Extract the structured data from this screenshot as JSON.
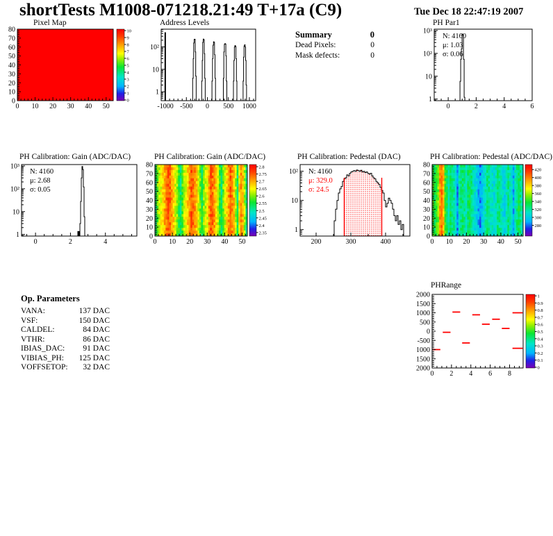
{
  "header": {
    "title": "shortTests M1008-071218.21:49 T+17a (C9)",
    "date": "Tue Dec 18 22:47:19 2007"
  },
  "summary": {
    "heading": "Summary",
    "heading_value": "0",
    "rows": [
      {
        "label": "Dead Pixels:",
        "value": "0"
      },
      {
        "label": "Mask defects:",
        "value": "0"
      }
    ]
  },
  "op_parameters": {
    "heading": "Op. Parameters",
    "rows": [
      {
        "label": "VANA:",
        "value": "137 DAC"
      },
      {
        "label": "VSF:",
        "value": "150 DAC"
      },
      {
        "label": "CALDEL:",
        "value": "84 DAC"
      },
      {
        "label": "VTHR:",
        "value": "86 DAC"
      },
      {
        "label": "IBIAS_DAC:",
        "value": "91 DAC"
      },
      {
        "label": "VIBIAS_PH:",
        "value": "125 DAC"
      },
      {
        "label": "VOFFSETOP:",
        "value": "32 DAC"
      }
    ]
  },
  "palette_stops": [
    [
      0.0,
      "#7a00b4"
    ],
    [
      0.1,
      "#2020e6"
    ],
    [
      0.2,
      "#00b4ff"
    ],
    [
      0.33,
      "#00e6c8"
    ],
    [
      0.47,
      "#0ae632"
    ],
    [
      0.58,
      "#96f000"
    ],
    [
      0.66,
      "#ffff00"
    ],
    [
      0.78,
      "#ffa000"
    ],
    [
      0.9,
      "#ff3c00"
    ],
    [
      1.0,
      "#ff0000"
    ]
  ],
  "chart_data": {
    "pixel_map": {
      "type": "heatmap",
      "title": "Pixel Map",
      "xlim": [
        0,
        54
      ],
      "ylim": [
        0,
        80
      ],
      "xticks": [
        0,
        10,
        20,
        30,
        40,
        50
      ],
      "xminor_step": 2,
      "yticks": [
        0,
        10,
        20,
        30,
        40,
        50,
        60,
        70,
        80
      ],
      "yminor_step": 2,
      "nx": 52,
      "ny": 26,
      "flat": 1.0,
      "noise": 0,
      "colorbar": {
        "labels": [
          "10",
          "9",
          "8",
          "7",
          "6",
          "5",
          "4",
          "3",
          "2",
          "1",
          "0"
        ]
      }
    },
    "address_levels": {
      "type": "hist",
      "title": "Address Levels",
      "xlim": [
        -1100,
        1150
      ],
      "xticks": [
        -1000,
        -500,
        0,
        500,
        1000
      ],
      "xminor_step": 100,
      "ylog": [
        0.4,
        620
      ],
      "ylabels": [
        {
          "v": 1,
          "l": "1"
        },
        {
          "v": 10,
          "l": "10"
        },
        {
          "v": 100,
          "l": "10²"
        }
      ],
      "fill_bins": [
        [
          -1020,
          -987,
          450
        ]
      ],
      "steps": [
        [
          -350,
          4
        ],
        [
          -338,
          30
        ],
        [
          -326,
          150
        ],
        [
          -314,
          220
        ],
        [
          -302,
          215
        ],
        [
          -290,
          60
        ],
        [
          -278,
          5
        ],
        [
          -266,
          0.1
        ],
        [
          -135,
          3
        ],
        [
          -123,
          25
        ],
        [
          -111,
          160
        ],
        [
          -99,
          225
        ],
        [
          -87,
          210
        ],
        [
          -75,
          50
        ],
        [
          -63,
          4
        ],
        [
          -51,
          0.1
        ],
        [
          110,
          3
        ],
        [
          122,
          30
        ],
        [
          134,
          120
        ],
        [
          146,
          170
        ],
        [
          158,
          160
        ],
        [
          170,
          45
        ],
        [
          182,
          4
        ],
        [
          194,
          0.1
        ],
        [
          380,
          4
        ],
        [
          392,
          60
        ],
        [
          404,
          130
        ],
        [
          416,
          140
        ],
        [
          428,
          135
        ],
        [
          440,
          40
        ],
        [
          452,
          3
        ],
        [
          464,
          0.1
        ],
        [
          620,
          3
        ],
        [
          632,
          25
        ],
        [
          644,
          100
        ],
        [
          656,
          115
        ],
        [
          668,
          105
        ],
        [
          680,
          30
        ],
        [
          692,
          3
        ],
        [
          704,
          0.1
        ],
        [
          850,
          3
        ],
        [
          862,
          35
        ],
        [
          874,
          110
        ],
        [
          886,
          125
        ],
        [
          898,
          100
        ],
        [
          910,
          25
        ],
        [
          922,
          2
        ],
        [
          934,
          0.1
        ]
      ]
    },
    "ph_par1": {
      "type": "hist",
      "title": "PH Par1",
      "stats": [
        {
          "t": "N: 4160",
          "c": "#000000"
        },
        {
          "t": "μ: 1.03",
          "c": "#000000"
        },
        {
          "t": "σ: 0.06",
          "c": "#000000"
        }
      ],
      "xlim": [
        -1,
        6
      ],
      "xticks": [
        0,
        2,
        4,
        6
      ],
      "xminor_step": 0.5,
      "ylog": [
        0.85,
        1150
      ],
      "ylabels": [
        {
          "v": 1,
          "l": "1"
        },
        {
          "v": 10,
          "l": "10"
        },
        {
          "v": 100,
          "l": "10²"
        },
        {
          "v": 1000,
          "l": "10³"
        }
      ],
      "steps": [
        [
          0.84,
          6
        ],
        [
          0.89,
          55
        ],
        [
          0.94,
          160
        ],
        [
          0.99,
          700
        ],
        [
          1.04,
          640
        ],
        [
          1.09,
          55
        ],
        [
          1.14,
          1.2
        ],
        [
          1.19,
          0.1
        ]
      ]
    },
    "gain_hist": {
      "type": "hist",
      "title": "PH Calibration: Gain (ADC/DAC)",
      "stats": [
        {
          "t": "N: 4160",
          "c": "#000000"
        },
        {
          "t": "μ: 2.68",
          "c": "#000000"
        },
        {
          "t": "σ: 0.05",
          "c": "#000000"
        }
      ],
      "xlim": [
        -0.8,
        5.8
      ],
      "xticks": [
        0,
        2,
        4
      ],
      "xminor_step": 0.5,
      "ylog": [
        0.85,
        1150
      ],
      "ylabels": [
        {
          "v": 1,
          "l": "1"
        },
        {
          "v": 10,
          "l": "10"
        },
        {
          "v": 100,
          "l": "10²"
        },
        {
          "v": 1000,
          "l": "10³"
        }
      ],
      "fill_bins": [
        [
          2.4,
          2.52,
          1.4
        ]
      ],
      "steps": [
        [
          2.54,
          3
        ],
        [
          2.58,
          28
        ],
        [
          2.62,
          300
        ],
        [
          2.66,
          950
        ],
        [
          2.7,
          700
        ],
        [
          2.74,
          120
        ],
        [
          2.78,
          6
        ],
        [
          2.82,
          0.1
        ]
      ]
    },
    "gain_map": {
      "type": "heatmap",
      "title": "PH Calibration: Gain (ADC/DAC)",
      "xlim": [
        0,
        53
      ],
      "ylim": [
        0,
        80
      ],
      "xticks": [
        0,
        10,
        20,
        30,
        40,
        50
      ],
      "xminor_step": 2,
      "yticks": [
        0,
        10,
        20,
        30,
        40,
        50,
        60,
        70,
        80
      ],
      "yminor_step": 2,
      "nx": 52,
      "ny": 26,
      "noise": 0.14,
      "seed": 11,
      "col_profile": [
        0.42,
        0.55,
        0.62,
        0.66,
        0.7,
        0.76,
        0.84,
        0.88,
        0.84,
        0.78,
        0.72,
        0.64,
        0.58,
        0.48,
        0.42,
        0.52,
        0.62,
        0.66,
        0.72,
        0.8,
        0.88,
        0.84,
        0.8,
        0.74,
        0.64,
        0.54,
        0.44,
        0.56,
        0.62,
        0.66,
        0.8,
        0.88,
        0.84,
        0.78,
        0.7,
        0.6,
        0.5,
        0.42,
        0.56,
        0.64,
        0.7,
        0.8,
        0.86,
        0.8,
        0.74,
        0.6,
        0.42,
        0.7,
        0.8,
        0.74,
        0.6,
        0.4
      ],
      "colorbar": {
        "labels": [
          "2.8",
          "2.75",
          "2.7",
          "2.65",
          "2.6",
          "2.55",
          "2.5",
          "2.45",
          "2.4",
          "2.35"
        ]
      }
    },
    "pedestal_hist": {
      "type": "hist",
      "title": "PH Calibration: Pedestal (DAC)",
      "stats": [
        {
          "t": "N: 4160",
          "c": "#000000"
        },
        {
          "t": "μ: 329.0",
          "c": "#ff0000"
        },
        {
          "t": "σ: 24.5",
          "c": "#ff0000"
        }
      ],
      "xlim": [
        154,
        470
      ],
      "xticks": [
        200,
        300,
        400
      ],
      "xminor_step": 50,
      "ylog": [
        0.6,
        170
      ],
      "ylabels": [
        {
          "v": 1,
          "l": "1"
        },
        {
          "v": 10,
          "l": "10"
        },
        {
          "v": 100,
          "l": "10²"
        }
      ],
      "red_lines": [
        [
          281,
          60
        ],
        [
          389,
          60
        ]
      ],
      "dot_fill": [
        281,
        389
      ],
      "accent": "#ff0000",
      "steps": [
        [
          252,
          2
        ],
        [
          256,
          5
        ],
        [
          260,
          10
        ],
        [
          264,
          18
        ],
        [
          268,
          25
        ],
        [
          272,
          30
        ],
        [
          276,
          45
        ],
        [
          280,
          55
        ],
        [
          284,
          60
        ],
        [
          288,
          75
        ],
        [
          292,
          70
        ],
        [
          296,
          85
        ],
        [
          300,
          95
        ],
        [
          304,
          100
        ],
        [
          308,
          105
        ],
        [
          312,
          100
        ],
        [
          316,
          110
        ],
        [
          320,
          105
        ],
        [
          324,
          100
        ],
        [
          328,
          108
        ],
        [
          332,
          95
        ],
        [
          336,
          100
        ],
        [
          340,
          90
        ],
        [
          344,
          95
        ],
        [
          348,
          85
        ],
        [
          352,
          80
        ],
        [
          356,
          85
        ],
        [
          360,
          70
        ],
        [
          364,
          60
        ],
        [
          368,
          55
        ],
        [
          372,
          45
        ],
        [
          376,
          40
        ],
        [
          380,
          35
        ],
        [
          384,
          28
        ],
        [
          388,
          22
        ],
        [
          392,
          18
        ],
        [
          396,
          10
        ],
        [
          400,
          6
        ],
        [
          404,
          8
        ],
        [
          408,
          12
        ],
        [
          412,
          10
        ],
        [
          416,
          8
        ],
        [
          420,
          5
        ],
        [
          424,
          3
        ],
        [
          428,
          2
        ],
        [
          432,
          3
        ],
        [
          436,
          1.5
        ],
        [
          440,
          2
        ],
        [
          444,
          1
        ],
        [
          448,
          1.5
        ],
        [
          452,
          0.1
        ]
      ]
    },
    "pedestal_map": {
      "type": "heatmap",
      "title": "PH Calibration: Pedestal (ADC/DAC)",
      "xlim": [
        0,
        53
      ],
      "ylim": [
        0,
        80
      ],
      "xticks": [
        0,
        10,
        20,
        30,
        40,
        50
      ],
      "xminor_step": 2,
      "yticks": [
        0,
        10,
        20,
        30,
        40,
        50,
        60,
        70,
        80
      ],
      "yminor_step": 2,
      "nx": 52,
      "ny": 26,
      "noise": 0.12,
      "seed": 23,
      "col_profile": [
        0.5,
        0.44,
        0.5,
        0.56,
        0.8,
        0.84,
        0.74,
        0.5,
        0.44,
        0.34,
        0.44,
        0.4,
        0.38,
        0.3,
        0.18,
        0.34,
        0.4,
        0.42,
        0.38,
        0.34,
        0.42,
        0.44,
        0.4,
        0.34,
        0.3,
        0.27,
        0.21,
        0.17,
        0.24,
        0.3,
        0.34,
        0.4,
        0.38,
        0.34,
        0.32,
        0.3,
        0.34,
        0.4,
        0.38,
        0.34,
        0.3,
        0.27,
        0.34,
        0.4,
        0.34,
        0.3,
        0.21,
        0.34,
        0.4,
        0.44,
        0.4,
        0.34
      ],
      "colorbar": {
        "labels": [
          "420",
          "400",
          "380",
          "360",
          "340",
          "320",
          "300",
          "280"
        ]
      }
    },
    "ph_range": {
      "type": "segments",
      "title": "PHRange",
      "xlim": [
        0,
        9.4
      ],
      "xticks": [
        0,
        2,
        4,
        6,
        8
      ],
      "xminor_step": 0.5,
      "ylim": [
        -2000,
        2000
      ],
      "yticks": [
        {
          "v": 2000,
          "l": "2000"
        },
        {
          "v": 1500,
          "l": "1500"
        },
        {
          "v": 1000,
          "l": "1000"
        },
        {
          "v": 500,
          "l": "500"
        },
        {
          "v": 0,
          "l": "0"
        },
        {
          "v": -500,
          "l": "-500"
        },
        {
          "v": -1000,
          "l": "1000"
        },
        {
          "v": -1500,
          "l": "1500"
        },
        {
          "v": -2000,
          "l": "2000"
        }
      ],
      "yminor_step": 100,
      "accent": "#ff0000",
      "segments": [
        [
          0.05,
          0.85,
          -1000
        ],
        [
          1.1,
          1.9,
          -60
        ],
        [
          2.1,
          2.9,
          1040
        ],
        [
          3.1,
          3.9,
          -640
        ],
        [
          4.15,
          4.95,
          890
        ],
        [
          5.15,
          5.95,
          380
        ],
        [
          6.2,
          7.0,
          650
        ],
        [
          7.2,
          8.0,
          150
        ],
        [
          8.3,
          9.35,
          1000
        ],
        [
          8.3,
          9.35,
          -930
        ]
      ],
      "colorbar": {
        "labels": [
          "1",
          "0.9",
          "0.8",
          "0.7",
          "0.6",
          "0.5",
          "0.4",
          "0.3",
          "0.2",
          "0.1",
          "0"
        ]
      }
    }
  }
}
